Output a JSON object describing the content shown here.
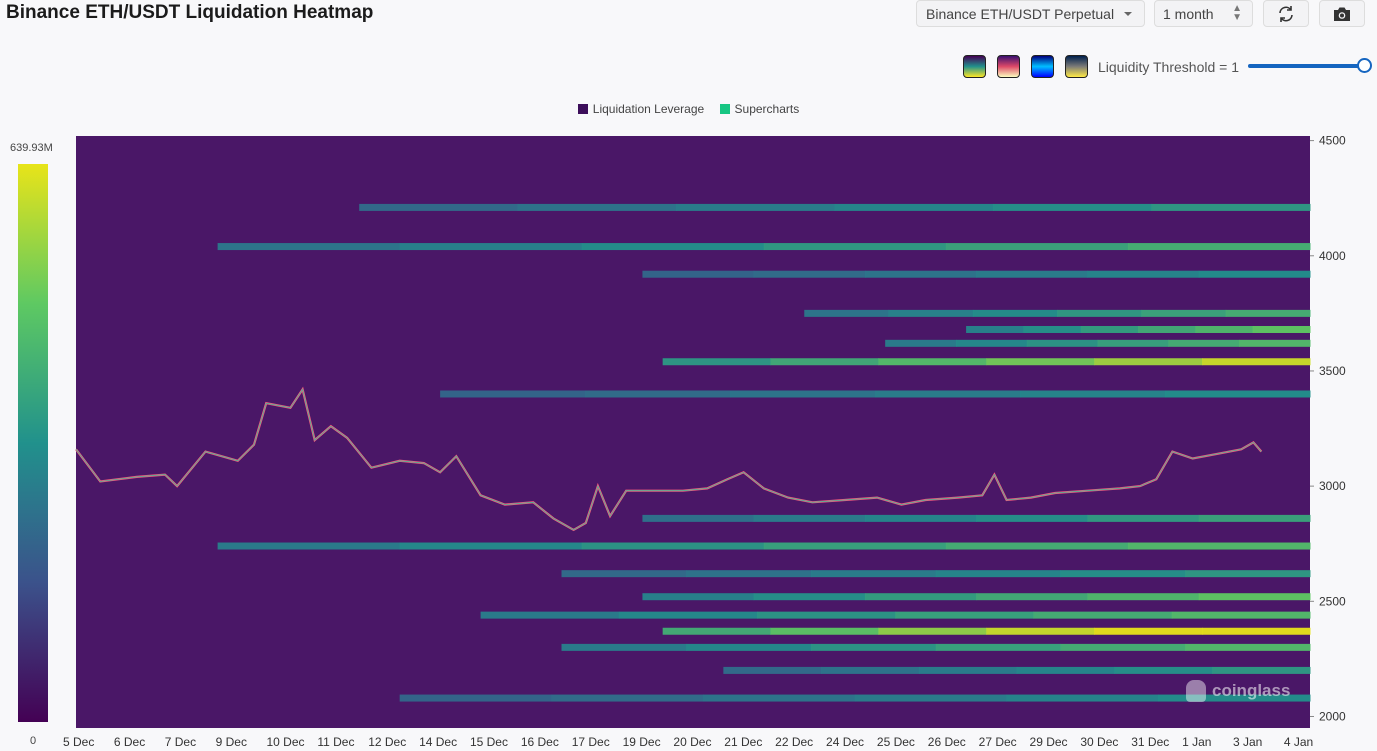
{
  "header": {
    "title": "Binance ETH/USDT Liquidation Heatmap",
    "symbol_select": "Binance ETH/USDT Perpetual",
    "range_select": "1 month",
    "refresh_icon": "refresh-icon",
    "camera_icon": "camera-icon"
  },
  "palettes": [
    {
      "name": "viridis-palette",
      "colors": [
        "#440154",
        "#21918c",
        "#fde725"
      ]
    },
    {
      "name": "magma-palette",
      "colors": [
        "#3b0f70",
        "#de4968",
        "#fcfdbf"
      ]
    },
    {
      "name": "jet-palette",
      "colors": [
        "#00007f",
        "#00bfff",
        "#0000ff"
      ]
    },
    {
      "name": "cividis-palette",
      "colors": [
        "#00204d",
        "#7c7b78",
        "#ffea46"
      ]
    }
  ],
  "threshold": {
    "label": "Liquidity Threshold = 1",
    "value": 1
  },
  "legend": {
    "liquidation_leverage": "Liquidation Leverage",
    "supercharts": "Supercharts",
    "leverage_color": "#3c0e5a",
    "supercharts_color": "#17c683"
  },
  "scale": {
    "max_label": "639.93M",
    "min_label": "0"
  },
  "watermark": "coinglass",
  "chart_data": {
    "type": "heatmap",
    "title": "Binance ETH/USDT Liquidation Heatmap",
    "x_ticks": [
      "5 Dec",
      "6 Dec",
      "7 Dec",
      "9 Dec",
      "10 Dec",
      "11 Dec",
      "12 Dec",
      "14 Dec",
      "15 Dec",
      "16 Dec",
      "17 Dec",
      "19 Dec",
      "20 Dec",
      "21 Dec",
      "22 Dec",
      "24 Dec",
      "25 Dec",
      "26 Dec",
      "27 Dec",
      "29 Dec",
      "30 Dec",
      "31 Dec",
      "1 Jan",
      "3 Jan",
      "4 Jan"
    ],
    "y_ticks": [
      "4500",
      "4000",
      "3500",
      "3000",
      "2500",
      "2000"
    ],
    "ylim": [
      1950,
      4520
    ],
    "colorscale_range": [
      0,
      639.93
    ],
    "colorscale_unit": "M",
    "liquidity_bands": [
      {
        "price": 4210,
        "start_day": 7,
        "intensity": 0.35
      },
      {
        "price": 4040,
        "start_day": 3.5,
        "intensity": 0.45
      },
      {
        "price": 3920,
        "start_day": 14,
        "intensity": 0.3
      },
      {
        "price": 3750,
        "start_day": 18,
        "intensity": 0.45
      },
      {
        "price": 3680,
        "start_day": 22,
        "intensity": 0.55
      },
      {
        "price": 3620,
        "start_day": 20,
        "intensity": 0.5
      },
      {
        "price": 3540,
        "start_day": 14.5,
        "intensity": 0.75
      },
      {
        "price": 3400,
        "start_day": 9,
        "intensity": 0.3
      },
      {
        "price": 2860,
        "start_day": 14,
        "intensity": 0.4
      },
      {
        "price": 2740,
        "start_day": 3.5,
        "intensity": 0.5
      },
      {
        "price": 2620,
        "start_day": 12,
        "intensity": 0.35
      },
      {
        "price": 2520,
        "start_day": 14,
        "intensity": 0.55
      },
      {
        "price": 2440,
        "start_day": 10,
        "intensity": 0.5
      },
      {
        "price": 2370,
        "start_day": 14.5,
        "intensity": 0.95
      },
      {
        "price": 2300,
        "start_day": 12,
        "intensity": 0.5
      },
      {
        "price": 2200,
        "start_day": 16,
        "intensity": 0.35
      },
      {
        "price": 2080,
        "start_day": 8,
        "intensity": 0.3
      }
    ],
    "price_series": [
      {
        "day": 0,
        "price": 3160
      },
      {
        "day": 0.6,
        "price": 3020
      },
      {
        "day": 1.5,
        "price": 3040
      },
      {
        "day": 2.2,
        "price": 3050
      },
      {
        "day": 2.5,
        "price": 3000
      },
      {
        "day": 3.2,
        "price": 3150
      },
      {
        "day": 4,
        "price": 3110
      },
      {
        "day": 4.4,
        "price": 3180
      },
      {
        "day": 4.7,
        "price": 3360
      },
      {
        "day": 5.3,
        "price": 3340
      },
      {
        "day": 5.6,
        "price": 3420
      },
      {
        "day": 5.9,
        "price": 3200
      },
      {
        "day": 6.3,
        "price": 3260
      },
      {
        "day": 6.7,
        "price": 3210
      },
      {
        "day": 7.3,
        "price": 3080
      },
      {
        "day": 8,
        "price": 3110
      },
      {
        "day": 8.6,
        "price": 3100
      },
      {
        "day": 9.0,
        "price": 3060
      },
      {
        "day": 9.4,
        "price": 3130
      },
      {
        "day": 10,
        "price": 2960
      },
      {
        "day": 10.6,
        "price": 2920
      },
      {
        "day": 11.3,
        "price": 2930
      },
      {
        "day": 11.8,
        "price": 2860
      },
      {
        "day": 12.3,
        "price": 2810
      },
      {
        "day": 12.6,
        "price": 2840
      },
      {
        "day": 12.9,
        "price": 3000
      },
      {
        "day": 13.2,
        "price": 2870
      },
      {
        "day": 13.6,
        "price": 2980
      },
      {
        "day": 14.4,
        "price": 2980
      },
      {
        "day": 15,
        "price": 2980
      },
      {
        "day": 15.6,
        "price": 2990
      },
      {
        "day": 16.1,
        "price": 3030
      },
      {
        "day": 16.5,
        "price": 3060
      },
      {
        "day": 17,
        "price": 2990
      },
      {
        "day": 17.6,
        "price": 2950
      },
      {
        "day": 18.2,
        "price": 2930
      },
      {
        "day": 19,
        "price": 2940
      },
      {
        "day": 19.8,
        "price": 2950
      },
      {
        "day": 20.4,
        "price": 2920
      },
      {
        "day": 21,
        "price": 2940
      },
      {
        "day": 21.8,
        "price": 2950
      },
      {
        "day": 22.4,
        "price": 2960
      },
      {
        "day": 22.7,
        "price": 3050
      },
      {
        "day": 23,
        "price": 2940
      },
      {
        "day": 23.6,
        "price": 2950
      },
      {
        "day": 24.2,
        "price": 2970
      },
      {
        "day": 25,
        "price": 2980
      },
      {
        "day": 25.8,
        "price": 2990
      },
      {
        "day": 26.3,
        "price": 3000
      },
      {
        "day": 26.7,
        "price": 3030
      },
      {
        "day": 27.1,
        "price": 3150
      },
      {
        "day": 27.6,
        "price": 3120
      },
      {
        "day": 28.2,
        "price": 3140
      },
      {
        "day": 28.8,
        "price": 3160
      },
      {
        "day": 29.1,
        "price": 3190
      },
      {
        "day": 29.3,
        "price": 3150
      }
    ]
  }
}
